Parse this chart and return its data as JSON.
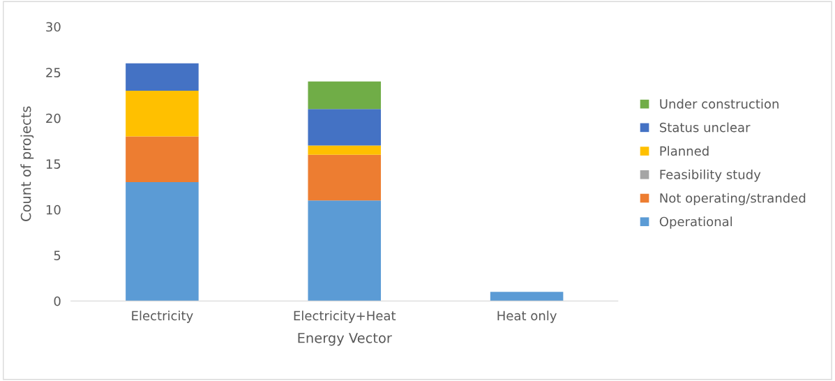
{
  "chart_data": {
    "type": "bar",
    "stacked": true,
    "xlabel": "Energy Vector",
    "ylabel": "Count of projects",
    "categories": [
      "Electricity",
      "Electricity+Heat",
      "Heat only"
    ],
    "series": [
      {
        "name": "Operational",
        "color": "#5b9bd5",
        "values": [
          13,
          11,
          1
        ]
      },
      {
        "name": "Not operating/stranded",
        "color": "#ed7d31",
        "values": [
          5,
          5,
          0
        ]
      },
      {
        "name": "Feasibility study",
        "color": "#a5a5a5",
        "values": [
          0,
          0,
          0
        ]
      },
      {
        "name": "Planned",
        "color": "#ffc000",
        "values": [
          5,
          1,
          0
        ]
      },
      {
        "name": "Status unclear",
        "color": "#4472c4",
        "values": [
          3,
          4,
          0
        ]
      },
      {
        "name": "Under construction",
        "color": "#70ad47",
        "values": [
          0,
          3,
          0
        ]
      }
    ],
    "ylim": [
      0,
      30
    ],
    "yticks": [
      0,
      5,
      10,
      15,
      20,
      25,
      30
    ],
    "grid": false,
    "legend": "right"
  }
}
